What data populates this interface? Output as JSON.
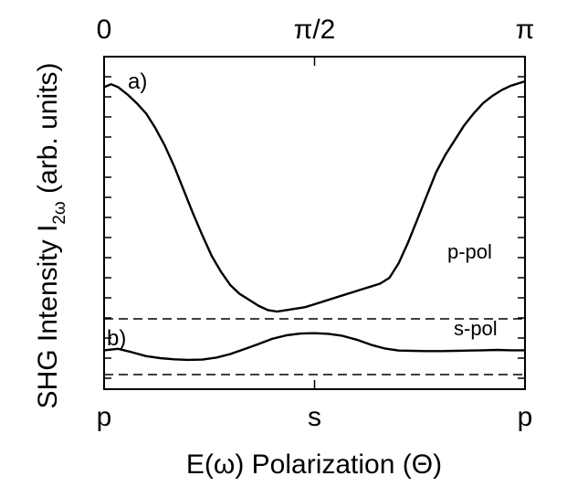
{
  "chart_data": {
    "type": "line",
    "xlabel": "E(ω) Polarization (Θ)",
    "ylabel": "SHG Intensity I",
    "ylabel_subscript": "2ω",
    "ylabel_units": " (arb. units)",
    "xlim": [
      0,
      180
    ],
    "ylim": [
      0,
      100
    ],
    "top_ticks": [
      {
        "x": 0,
        "label": "0"
      },
      {
        "x": 90,
        "label": "π/2"
      },
      {
        "x": 180,
        "label": "π"
      }
    ],
    "bottom_ticks": [
      {
        "x": 0,
        "label": "p"
      },
      {
        "x": 90,
        "label": "s"
      },
      {
        "x": 180,
        "label": "p"
      }
    ],
    "panels": [
      "a)",
      "b)"
    ],
    "baselines": [
      {
        "name": "a-baseline",
        "y": 19
      },
      {
        "name": "b-baseline",
        "y": 0
      }
    ],
    "series": [
      {
        "name": "p-pol",
        "panel": "a)",
        "x": [
          0,
          3,
          6,
          10,
          14,
          18,
          22,
          26,
          30,
          34,
          38,
          42,
          46,
          50,
          54,
          58,
          62,
          66,
          70,
          74,
          78,
          82,
          86,
          90,
          94,
          98,
          102,
          106,
          110,
          114,
          118,
          122,
          126,
          130,
          134,
          138,
          142,
          146,
          150,
          154,
          158,
          162,
          166,
          170,
          174,
          178,
          180
        ],
        "y": [
          98,
          99,
          98,
          95.5,
          92.5,
          89,
          84,
          78,
          71,
          63,
          55,
          47.5,
          40.5,
          35,
          30.5,
          27.5,
          25.5,
          23.5,
          22,
          21.5,
          22,
          22.5,
          23,
          24,
          25,
          26,
          27,
          28,
          29,
          30,
          31,
          33,
          38,
          45,
          53,
          61,
          69,
          75,
          80,
          85,
          89,
          92.5,
          95,
          97,
          98.5,
          99.5,
          100
        ]
      },
      {
        "name": "s-pol",
        "panel": "b)",
        "x": [
          0,
          6,
          12,
          18,
          24,
          30,
          36,
          42,
          48,
          54,
          60,
          66,
          72,
          78,
          84,
          90,
          96,
          102,
          108,
          114,
          120,
          126,
          132,
          138,
          144,
          150,
          156,
          162,
          168,
          174,
          180
        ],
        "y": [
          8.3,
          8.8,
          7.6,
          6.3,
          5.6,
          5.2,
          5.0,
          5.1,
          5.8,
          7.0,
          8.7,
          10.4,
          12.2,
          13.4,
          14.0,
          14.1,
          13.9,
          13.2,
          11.9,
          10.2,
          8.9,
          8.2,
          8.1,
          8.0,
          8.0,
          8.1,
          8.2,
          8.3,
          8.4,
          8.3,
          8.3
        ]
      }
    ]
  }
}
